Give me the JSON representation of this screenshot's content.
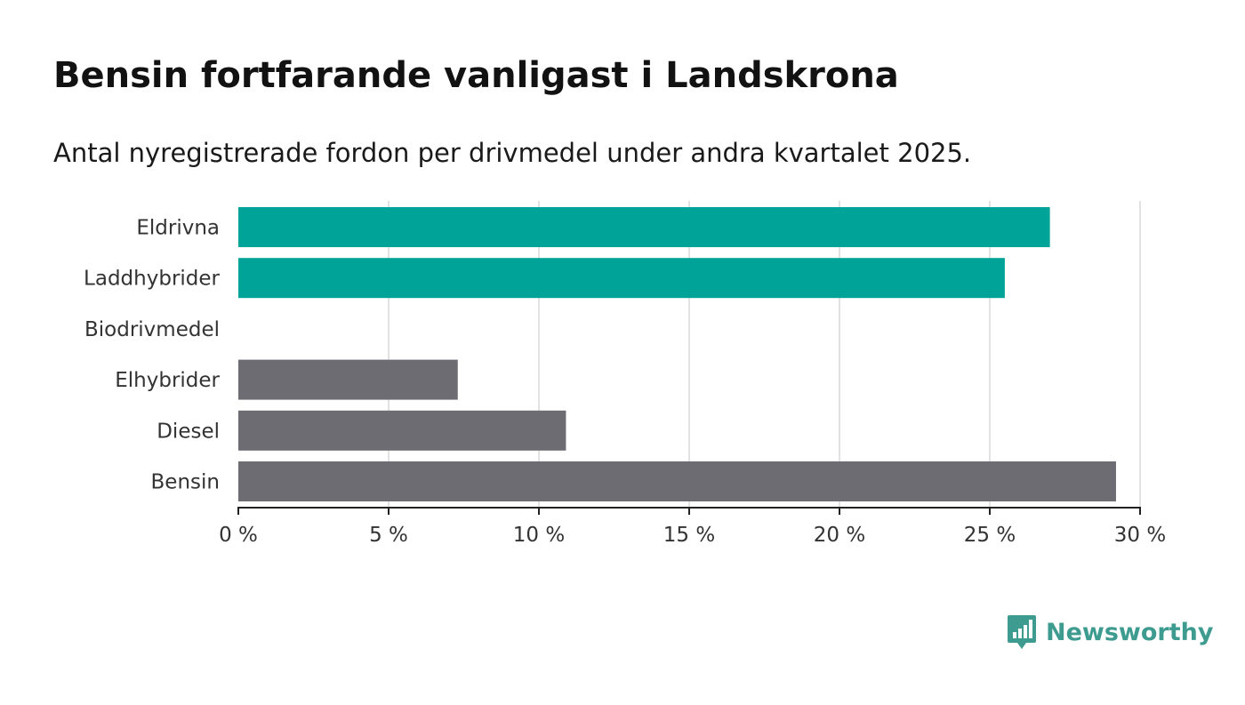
{
  "title": "Bensin fortfarande vanligast i Landskrona",
  "subtitle": "Antal nyregistrerade fordon per drivmedel under andra kvartalet 2025.",
  "brand": {
    "name": "Newsworthy",
    "color": "#3d9b8f",
    "icon": "bar-chart-speech-bubble-icon"
  },
  "colors": {
    "highlight": "#00a398",
    "default": "#6d6c72",
    "grid": "#d9d9d9",
    "axis": "#222222"
  },
  "chart_data": {
    "type": "bar",
    "orientation": "horizontal",
    "categories": [
      "Eldrivna",
      "Laddhybrider",
      "Biodrivmedel",
      "Elhybrider",
      "Diesel",
      "Bensin"
    ],
    "values": [
      27.0,
      25.5,
      0,
      7.3,
      10.9,
      29.2
    ],
    "highlighted": [
      true,
      true,
      false,
      false,
      false,
      false
    ],
    "xlim": [
      0,
      30
    ],
    "ticks": [
      0,
      5,
      10,
      15,
      20,
      25,
      30
    ],
    "tick_labels": [
      "0 %",
      "5 %",
      "10 %",
      "15 %",
      "20 %",
      "25 %",
      "30 %"
    ],
    "grid": true
  }
}
